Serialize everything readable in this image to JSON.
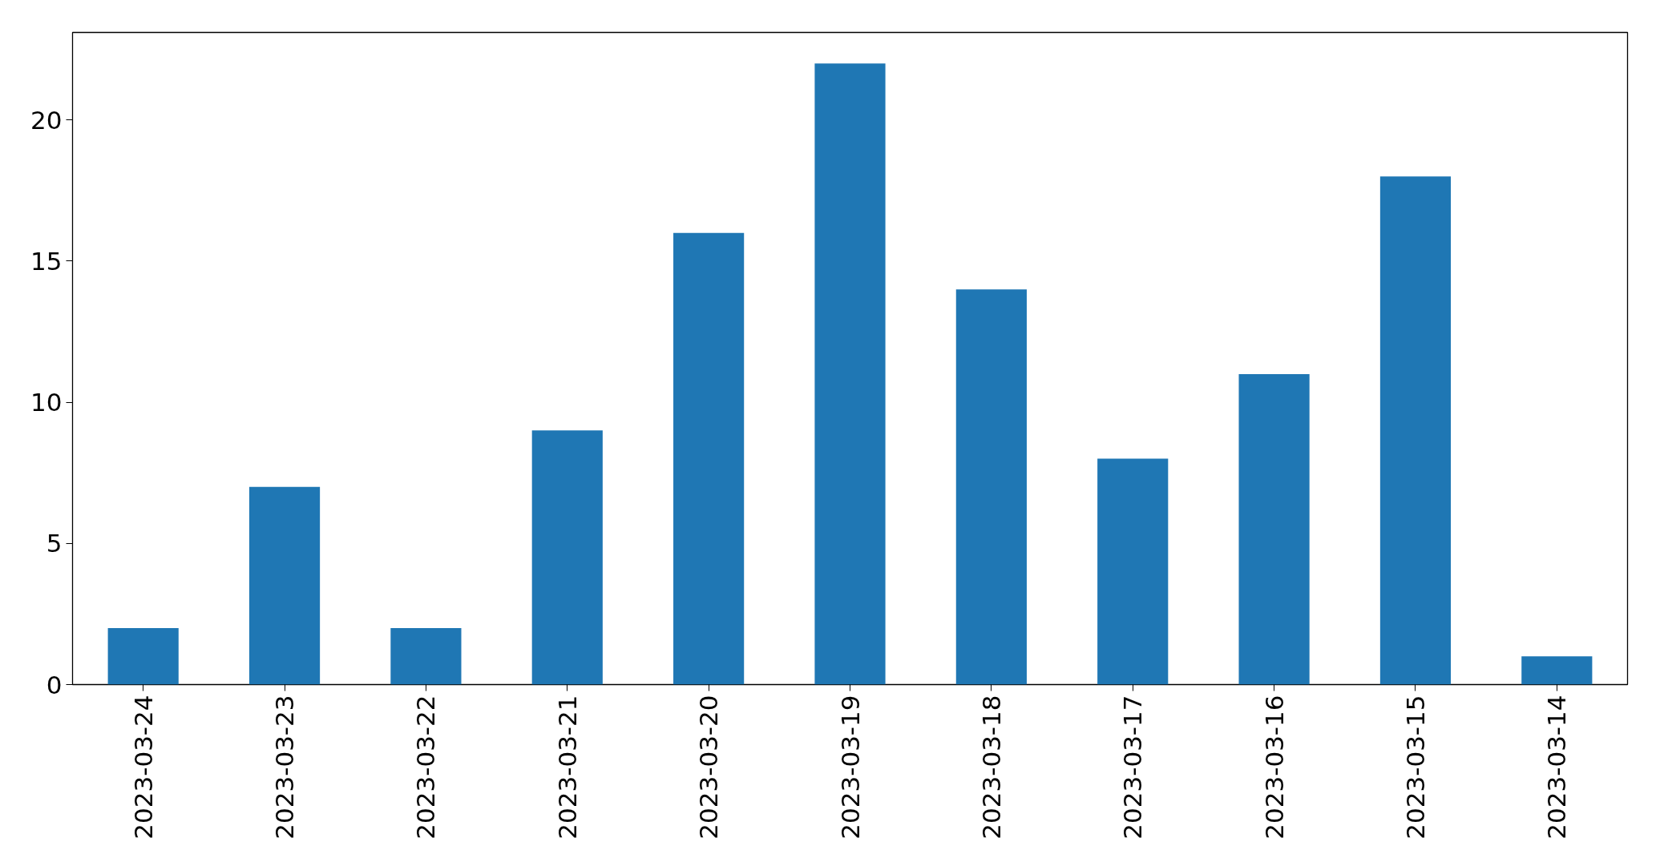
{
  "chart_data": {
    "type": "bar",
    "categories": [
      "2023-03-24",
      "2023-03-23",
      "2023-03-22",
      "2023-03-21",
      "2023-03-20",
      "2023-03-19",
      "2023-03-18",
      "2023-03-17",
      "2023-03-16",
      "2023-03-15",
      "2023-03-14"
    ],
    "values": [
      2,
      7,
      2,
      9,
      16,
      22,
      14,
      8,
      11,
      18,
      1
    ],
    "color": "#1f77b4",
    "ylim": [
      0,
      23.1
    ],
    "yticks": [
      0,
      5,
      10,
      15,
      20
    ],
    "grid": false
  }
}
